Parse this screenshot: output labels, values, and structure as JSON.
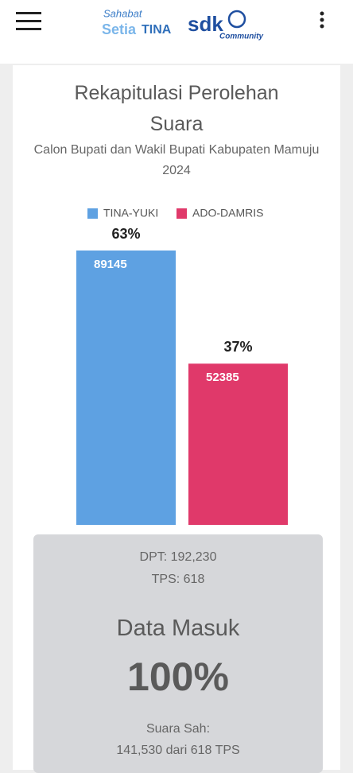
{
  "header": {
    "logo": {
      "line1": "Sahabat",
      "line2a": "Setia",
      "line2b": "TINA",
      "brand": "sdk",
      "brand_sub": "Community"
    }
  },
  "chart_data": {
    "type": "bar",
    "title": "Rekapitulasi Perolehan Suara",
    "subtitle": "Calon Bupati dan Wakil Bupati Kabupaten Mamuju 2024",
    "series": [
      {
        "name": "TINA-YUKI",
        "color": "#5ea1e2",
        "values": [
          89145
        ],
        "percent_labels": [
          "63%"
        ]
      },
      {
        "name": "ADO-DAMRIS",
        "color": "#e0396a",
        "values": [
          52385
        ],
        "percent_labels": [
          "37%"
        ]
      }
    ]
  },
  "stats": {
    "dpt": "DPT: 192,230",
    "tps": "TPS: 618",
    "heading": "Data Masuk",
    "percent": "100%",
    "valid_label": "Suara Sah:",
    "valid_value": "141,530 dari 618 TPS"
  }
}
